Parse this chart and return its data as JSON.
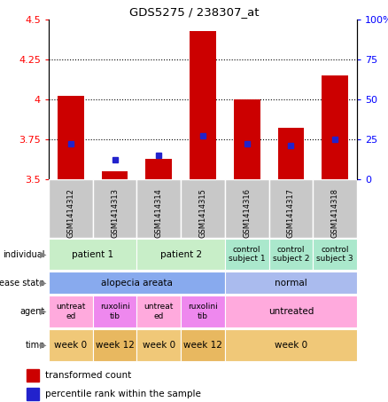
{
  "title": "GDS5275 / 238307_at",
  "samples": [
    "GSM1414312",
    "GSM1414313",
    "GSM1414314",
    "GSM1414315",
    "GSM1414316",
    "GSM1414317",
    "GSM1414318"
  ],
  "transformed_count": [
    4.02,
    3.55,
    3.63,
    4.43,
    4.0,
    3.82,
    4.15
  ],
  "percentile_rank": [
    22,
    12,
    15,
    27,
    22,
    21,
    25
  ],
  "ylim_left": [
    3.5,
    4.5
  ],
  "ylim_right": [
    0,
    100
  ],
  "yticks_left": [
    3.5,
    3.75,
    4.0,
    4.25,
    4.5
  ],
  "yticks_right": [
    0,
    25,
    50,
    75,
    100
  ],
  "ytick_labels_left": [
    "3.5",
    "3.75",
    "4",
    "4.25",
    "4.5"
  ],
  "ytick_labels_right": [
    "0",
    "25",
    "50",
    "75",
    "100%"
  ],
  "bar_color": "#cc0000",
  "dot_color": "#2222cc",
  "plot_bg": "#ffffff",
  "gray_bg": "#c8c8c8",
  "grid_lines": [
    3.75,
    4.0,
    4.25
  ],
  "row_labels": [
    "individual",
    "disease state",
    "agent",
    "time"
  ],
  "individual_data": [
    {
      "label": "patient 1",
      "cols": [
        0,
        1
      ],
      "color": "#c8eec8"
    },
    {
      "label": "patient 2",
      "cols": [
        2,
        3
      ],
      "color": "#c8eec8"
    },
    {
      "label": "control\nsubject 1",
      "cols": [
        4
      ],
      "color": "#aae8cc"
    },
    {
      "label": "control\nsubject 2",
      "cols": [
        5
      ],
      "color": "#aae8cc"
    },
    {
      "label": "control\nsubject 3",
      "cols": [
        6
      ],
      "color": "#aae8cc"
    }
  ],
  "disease_data": [
    {
      "label": "alopecia areata",
      "cols": [
        0,
        1,
        2,
        3
      ],
      "color": "#88aaee"
    },
    {
      "label": "normal",
      "cols": [
        4,
        5,
        6
      ],
      "color": "#aabbee"
    }
  ],
  "agent_data": [
    {
      "label": "untreat\ned",
      "cols": [
        0
      ],
      "color": "#ffaadd"
    },
    {
      "label": "ruxolini\ntib",
      "cols": [
        1
      ],
      "color": "#ee88ee"
    },
    {
      "label": "untreat\ned",
      "cols": [
        2
      ],
      "color": "#ffaadd"
    },
    {
      "label": "ruxolini\ntib",
      "cols": [
        3
      ],
      "color": "#ee88ee"
    },
    {
      "label": "untreated",
      "cols": [
        4,
        5,
        6
      ],
      "color": "#ffaadd"
    }
  ],
  "time_data": [
    {
      "label": "week 0",
      "cols": [
        0
      ],
      "color": "#f0c878"
    },
    {
      "label": "week 12",
      "cols": [
        1
      ],
      "color": "#e8b860"
    },
    {
      "label": "week 0",
      "cols": [
        2
      ],
      "color": "#f0c878"
    },
    {
      "label": "week 12",
      "cols": [
        3
      ],
      "color": "#e8b860"
    },
    {
      "label": "week 0",
      "cols": [
        4,
        5,
        6
      ],
      "color": "#f0c878"
    }
  ]
}
